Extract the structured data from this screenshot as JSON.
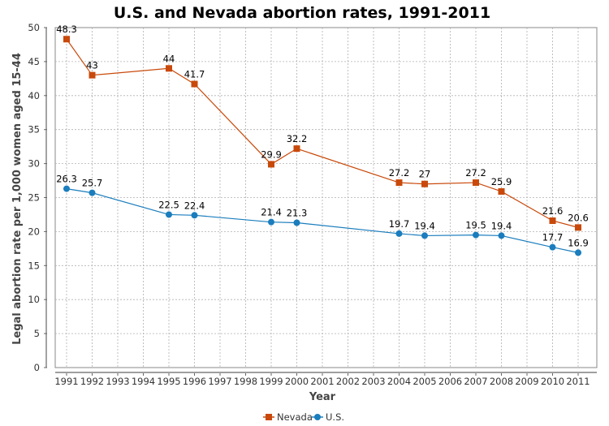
{
  "chart_data": {
    "type": "line",
    "title": "U.S. and Nevada abortion rates, 1991-2011",
    "xlabel": "Year",
    "ylabel": "Legal abortion rate per 1,000 women aged 15-44",
    "x_ticks": [
      "1991",
      "1992",
      "1993",
      "1994",
      "1995",
      "1996",
      "1997",
      "1998",
      "1999",
      "2000",
      "2001",
      "2002",
      "2003",
      "2004",
      "2005",
      "2006",
      "2007",
      "2008",
      "2009",
      "2010",
      "2011"
    ],
    "y_ticks": [
      0,
      5,
      10,
      15,
      20,
      25,
      30,
      35,
      40,
      45,
      50
    ],
    "ylim": [
      0,
      50
    ],
    "xlim": [
      1991,
      2011
    ],
    "grid": true,
    "legend_position": "bottom-center",
    "series": [
      {
        "name": "Nevada",
        "color": "#c8490a",
        "marker": "square",
        "x": [
          1991,
          1992,
          1995,
          1996,
          1999,
          2000,
          2004,
          2005,
          2007,
          2008,
          2010,
          2011
        ],
        "values": [
          48.3,
          43,
          44,
          41.7,
          29.9,
          32.2,
          27.2,
          27,
          27.2,
          25.9,
          21.6,
          20.6
        ],
        "labels": [
          "48.3",
          "43",
          "44",
          "41.7",
          "29.9",
          "32.2",
          "27.2",
          "27",
          "27.2",
          "25.9",
          "21.6",
          "20.6"
        ]
      },
      {
        "name": "U.S.",
        "color": "#1a7dbd",
        "marker": "circle",
        "x": [
          1991,
          1992,
          1995,
          1996,
          1999,
          2000,
          2004,
          2005,
          2007,
          2008,
          2010,
          2011
        ],
        "values": [
          26.3,
          25.7,
          22.5,
          22.4,
          21.4,
          21.3,
          19.7,
          19.4,
          19.5,
          19.4,
          17.7,
          16.9
        ],
        "labels": [
          "26.3",
          "25.7",
          "22.5",
          "22.4",
          "21.4",
          "21.3",
          "19.7",
          "19.4",
          "19.5",
          "19.4",
          "17.7",
          "16.9"
        ]
      }
    ]
  }
}
